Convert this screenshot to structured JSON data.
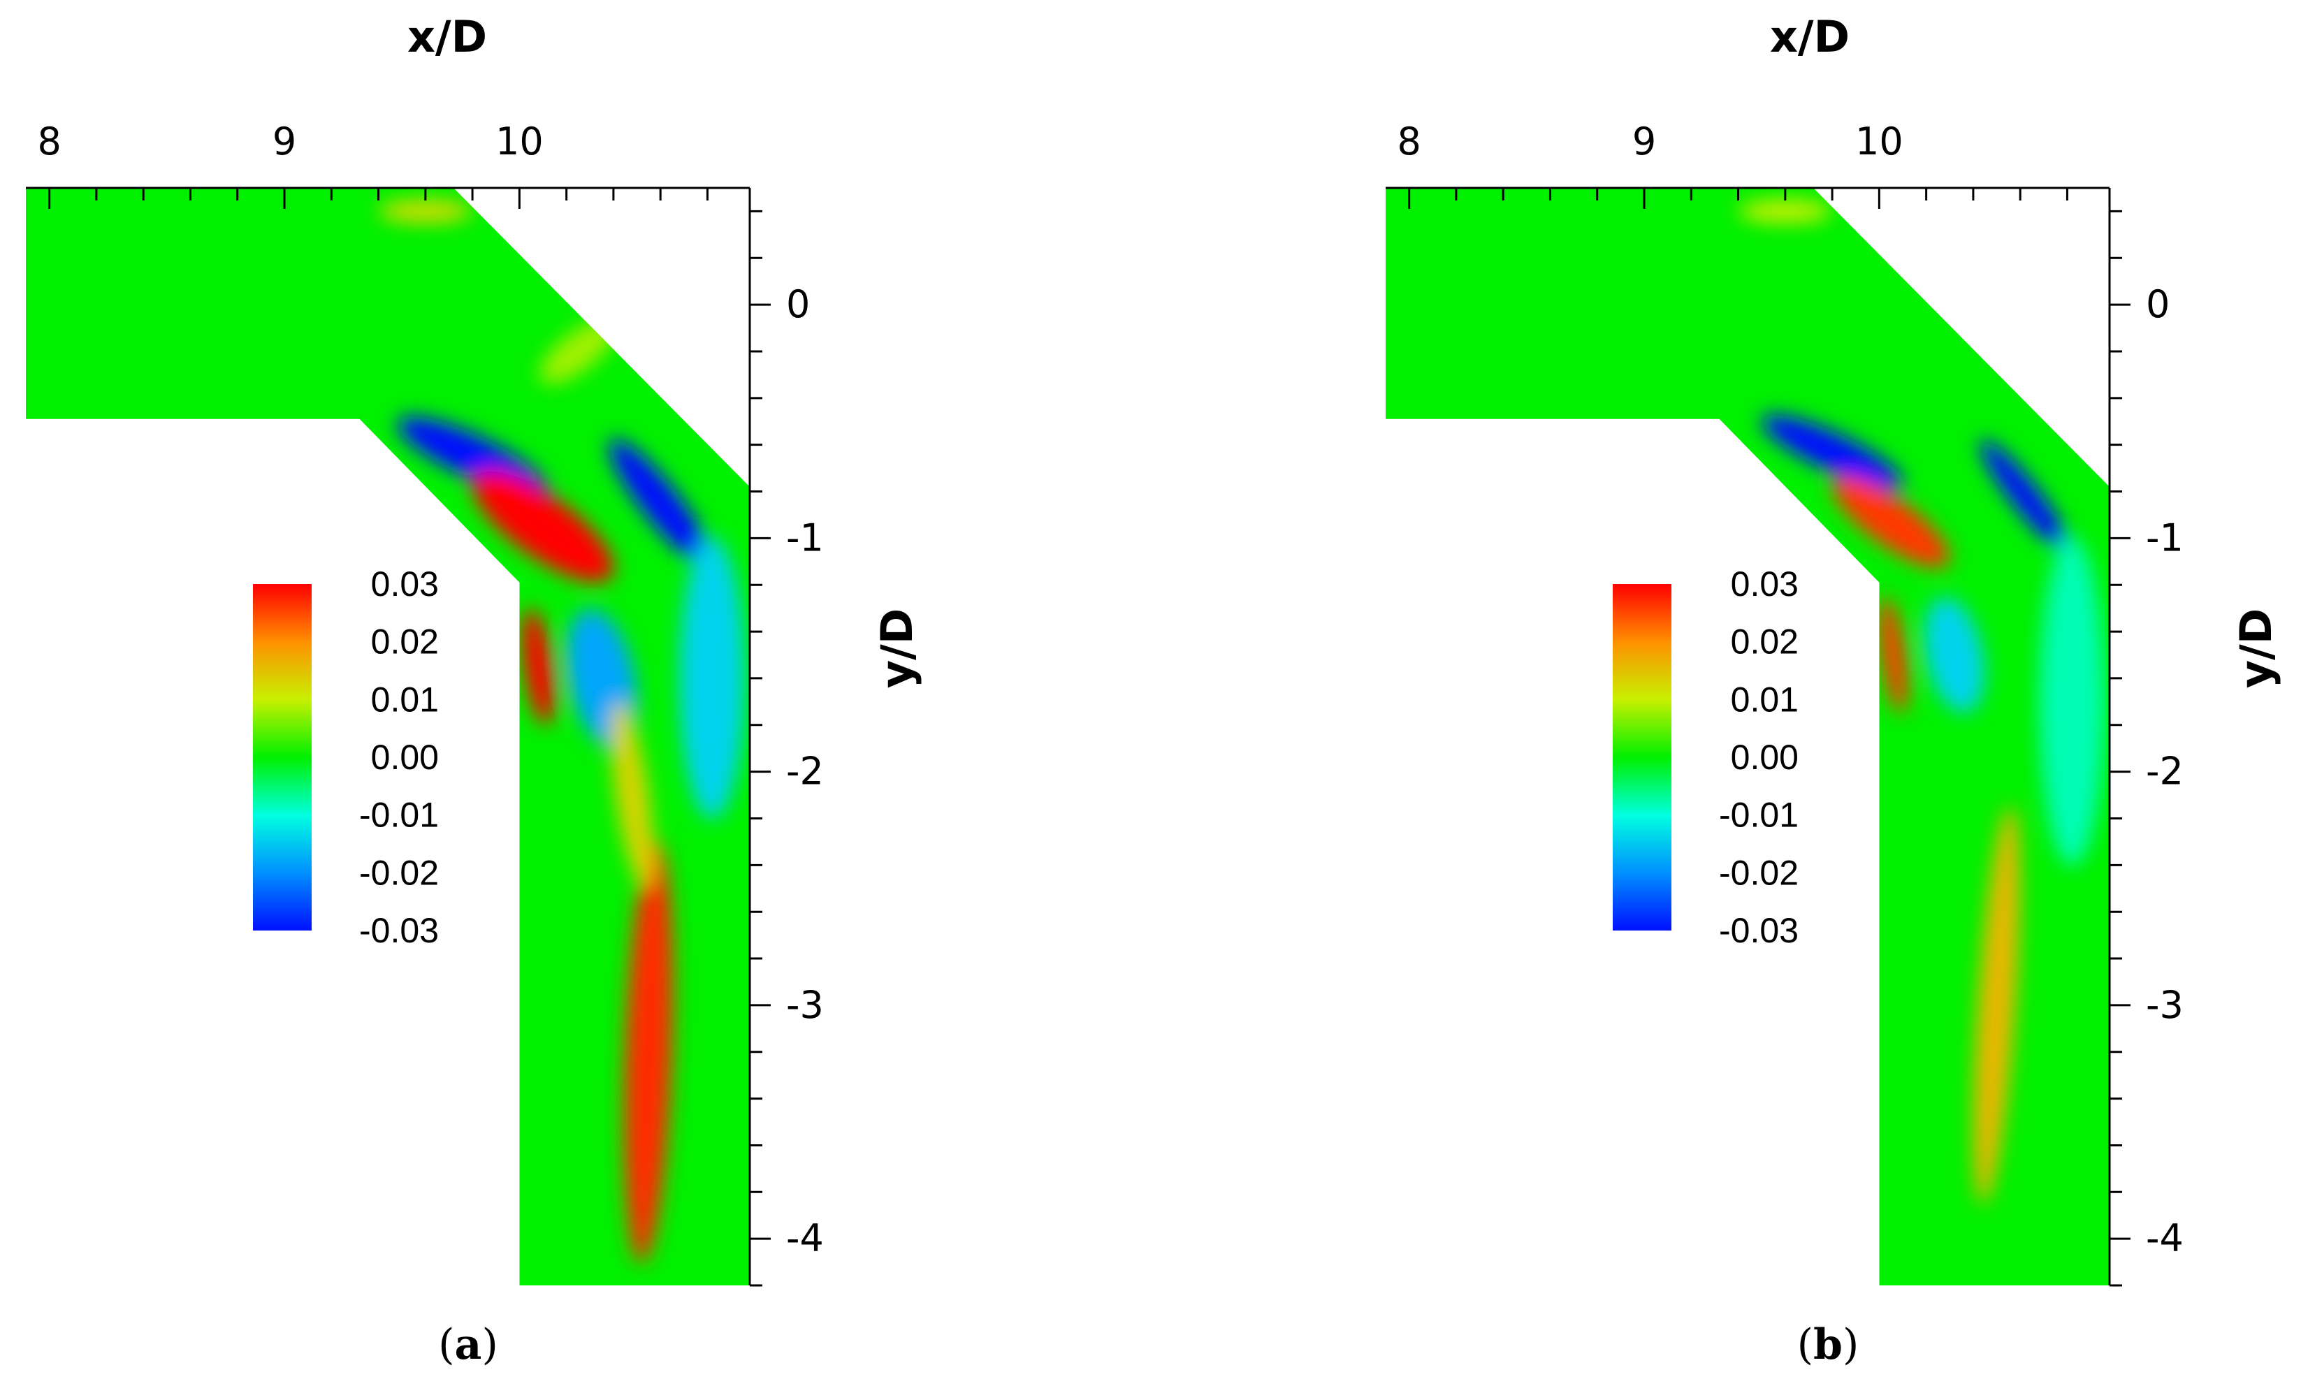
{
  "chart_data": [
    {
      "type": "heatmap",
      "panel": "a",
      "caption_open": "(",
      "caption_letter": "a",
      "caption_close": ")",
      "xlabel": "x/D",
      "ylabel": "y/D",
      "xlim": [
        7.9,
        10.98
      ],
      "ylim": [
        -4.2,
        0.5
      ],
      "x_ticks": [
        8,
        9,
        10
      ],
      "y_ticks": [
        0,
        -1,
        -2,
        -3,
        -4
      ],
      "colorbar": {
        "min": -0.03,
        "max": 0.03,
        "labels": [
          "0.03",
          "0.02",
          "0.01",
          "0.00",
          "-0.01",
          "-0.02",
          "-0.03"
        ]
      },
      "features": [
        {
          "kind": "ellipse",
          "cx": 9.8,
          "cy": -0.65,
          "rx": 0.35,
          "ry": 0.09,
          "rot": 25,
          "value": -0.035
        },
        {
          "kind": "ellipse",
          "cx": 10.1,
          "cy": -0.95,
          "rx": 0.36,
          "ry": 0.13,
          "rot": 36,
          "value": 0.034
        },
        {
          "kind": "ellipse",
          "cx": 10.6,
          "cy": -0.85,
          "rx": 0.34,
          "ry": 0.08,
          "rot": 52,
          "value": -0.035
        },
        {
          "kind": "ellipse",
          "cx": 10.35,
          "cy": -1.6,
          "rx": 0.14,
          "ry": 0.3,
          "rot": -12,
          "value": -0.018
        },
        {
          "kind": "ellipse",
          "cx": 10.08,
          "cy": -1.55,
          "rx": 0.06,
          "ry": 0.25,
          "rot": -8,
          "value": 0.03
        },
        {
          "kind": "ellipse",
          "cx": 10.55,
          "cy": -3.2,
          "rx": 0.1,
          "ry": 0.9,
          "rot": 2,
          "value": 0.027
        },
        {
          "kind": "ellipse",
          "cx": 10.48,
          "cy": -2.1,
          "rx": 0.07,
          "ry": 0.4,
          "rot": -8,
          "value": 0.013
        },
        {
          "kind": "ellipse",
          "cx": 10.82,
          "cy": -1.6,
          "rx": 0.14,
          "ry": 0.6,
          "rot": 0,
          "value": -0.014
        },
        {
          "kind": "ellipse",
          "cx": 9.6,
          "cy": 0.4,
          "rx": 0.2,
          "ry": 0.05,
          "rot": 0,
          "value": 0.012
        },
        {
          "kind": "ellipse",
          "cx": 10.25,
          "cy": -0.2,
          "rx": 0.2,
          "ry": 0.08,
          "rot": -38,
          "value": 0.008
        }
      ]
    },
    {
      "type": "heatmap",
      "panel": "b",
      "caption_open": "(",
      "caption_letter": "b",
      "caption_close": ")",
      "xlabel": "x/D",
      "ylabel": "y/D",
      "xlim": [
        7.9,
        10.98
      ],
      "ylim": [
        -4.2,
        0.5
      ],
      "x_ticks": [
        8,
        9,
        10
      ],
      "y_ticks": [
        0,
        -1,
        -2,
        -3,
        -4
      ],
      "colorbar": {
        "min": -0.03,
        "max": 0.03,
        "labels": [
          "0.03",
          "0.02",
          "0.01",
          "0.00",
          "-0.01",
          "-0.02",
          "-0.03"
        ]
      },
      "features": [
        {
          "kind": "ellipse",
          "cx": 9.8,
          "cy": -0.63,
          "rx": 0.33,
          "ry": 0.08,
          "rot": 25,
          "value": -0.035
        },
        {
          "kind": "ellipse",
          "cx": 10.05,
          "cy": -0.93,
          "rx": 0.3,
          "ry": 0.1,
          "rot": 36,
          "value": 0.026
        },
        {
          "kind": "ellipse",
          "cx": 10.62,
          "cy": -0.82,
          "rx": 0.3,
          "ry": 0.06,
          "rot": 52,
          "value": -0.035
        },
        {
          "kind": "ellipse",
          "cx": 10.32,
          "cy": -1.5,
          "rx": 0.12,
          "ry": 0.25,
          "rot": -12,
          "value": -0.014
        },
        {
          "kind": "ellipse",
          "cx": 10.06,
          "cy": -1.5,
          "rx": 0.05,
          "ry": 0.25,
          "rot": -8,
          "value": 0.026
        },
        {
          "kind": "ellipse",
          "cx": 10.5,
          "cy": -3.0,
          "rx": 0.08,
          "ry": 0.85,
          "rot": 4,
          "value": 0.016
        },
        {
          "kind": "ellipse",
          "cx": 10.82,
          "cy": -1.7,
          "rx": 0.14,
          "ry": 0.7,
          "rot": 0,
          "value": -0.008
        },
        {
          "kind": "ellipse",
          "cx": 9.6,
          "cy": 0.4,
          "rx": 0.2,
          "ry": 0.05,
          "rot": 0,
          "value": 0.01
        }
      ]
    }
  ]
}
